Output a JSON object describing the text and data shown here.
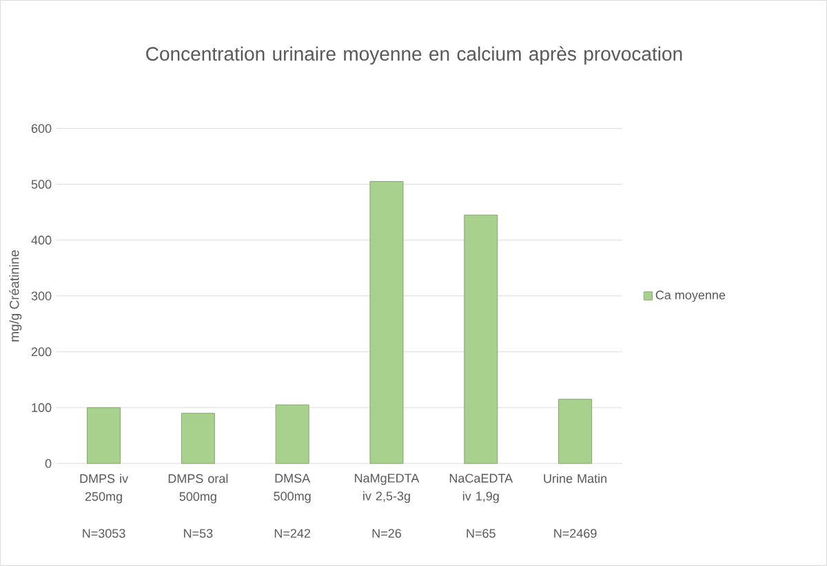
{
  "chart_data": {
    "type": "bar",
    "title": "Concentration urinaire moyenne en calcium après provocation",
    "ylabel": "mg/g Créatinine",
    "categories": [
      "DMPS iv 250mg",
      "DMPS oral 500mg",
      "DMSA 500mg",
      "NaMgEDTA iv 2,5-3g",
      "NaCaEDTA iv 1,9g",
      "Urine Matin"
    ],
    "annotations": [
      "N=3053",
      "N=53",
      "N=242",
      "N=26",
      "N=65",
      "N=2469"
    ],
    "series": [
      {
        "name": "Ca moyenne",
        "color": "#a9d18e",
        "values": [
          100,
          90,
          105,
          505,
          445,
          115
        ]
      }
    ],
    "ylim": [
      0,
      600
    ],
    "yticks": [
      0,
      100,
      200,
      300,
      400,
      500,
      600
    ],
    "grid": "y",
    "legend": "right"
  }
}
